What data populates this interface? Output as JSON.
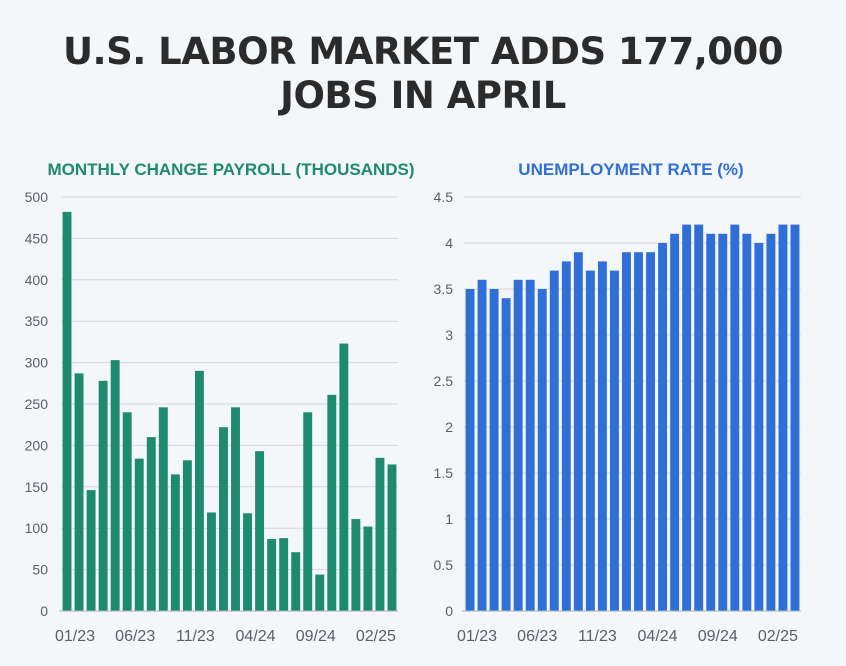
{
  "headline": {
    "line1": "U.S. LABOR MARKET ADDS 177,000",
    "line2": "JOBS IN APRIL"
  },
  "colors": {
    "payroll_bar": "#1e8a6e",
    "payroll_title": "#1e8a6e",
    "unemployment_bar": "#2f6fd6",
    "unemployment_title": "#2f6fd6",
    "gridline": "#d4d8de",
    "axis": "#aab0b8",
    "tick_text": "#5a5f66"
  },
  "chart_data": [
    {
      "type": "bar",
      "title": "MONTHLY CHANGE PAYROLL (THOUSANDS)",
      "xlabel": "",
      "ylabel": "",
      "ylim": [
        0,
        500
      ],
      "yticks": [
        0,
        50,
        100,
        150,
        200,
        250,
        300,
        350,
        400,
        450,
        500
      ],
      "grid": true,
      "x_tick_labels": [
        {
          "index": 0,
          "label": "01/23"
        },
        {
          "index": 5,
          "label": "06/23"
        },
        {
          "index": 10,
          "label": "11/23"
        },
        {
          "index": 15,
          "label": "04/24"
        },
        {
          "index": 20,
          "label": "09/24"
        },
        {
          "index": 25,
          "label": "02/25"
        }
      ],
      "categories": [
        "01/23",
        "02/23",
        "03/23",
        "04/23",
        "05/23",
        "06/23",
        "07/23",
        "08/23",
        "09/23",
        "10/23",
        "11/23",
        "12/23",
        "01/24",
        "02/24",
        "03/24",
        "04/24",
        "05/24",
        "06/24",
        "07/24",
        "08/24",
        "09/24",
        "10/24",
        "11/24",
        "12/24",
        "01/25",
        "02/25",
        "03/25",
        "04/25"
      ],
      "values": [
        482,
        287,
        146,
        278,
        303,
        240,
        184,
        210,
        246,
        165,
        182,
        290,
        119,
        222,
        246,
        118,
        193,
        87,
        88,
        71,
        240,
        44,
        261,
        323,
        111,
        102,
        185,
        177
      ]
    },
    {
      "type": "bar",
      "title": "UNEMPLOYMENT RATE (%)",
      "xlabel": "",
      "ylabel": "",
      "ylim": [
        0,
        4.5
      ],
      "yticks": [
        0,
        0.5,
        1,
        1.5,
        2,
        2.5,
        3,
        3.5,
        4,
        4.5
      ],
      "grid": true,
      "x_tick_labels": [
        {
          "index": 0,
          "label": "01/23"
        },
        {
          "index": 5,
          "label": "06/23"
        },
        {
          "index": 10,
          "label": "11/23"
        },
        {
          "index": 15,
          "label": "04/24"
        },
        {
          "index": 20,
          "label": "09/24"
        },
        {
          "index": 25,
          "label": "02/25"
        }
      ],
      "categories": [
        "01/23",
        "02/23",
        "03/23",
        "04/23",
        "05/23",
        "06/23",
        "07/23",
        "08/23",
        "09/23",
        "10/23",
        "11/23",
        "12/23",
        "01/24",
        "02/24",
        "03/24",
        "04/24",
        "05/24",
        "06/24",
        "07/24",
        "08/24",
        "09/24",
        "10/24",
        "11/24",
        "12/24",
        "01/25",
        "02/25",
        "03/25",
        "04/25"
      ],
      "values": [
        3.5,
        3.6,
        3.5,
        3.4,
        3.6,
        3.6,
        3.5,
        3.7,
        3.8,
        3.9,
        3.7,
        3.8,
        3.7,
        3.9,
        3.9,
        3.9,
        4.0,
        4.1,
        4.2,
        4.2,
        4.1,
        4.1,
        4.2,
        4.1,
        4.0,
        4.1,
        4.2,
        4.2
      ]
    }
  ]
}
